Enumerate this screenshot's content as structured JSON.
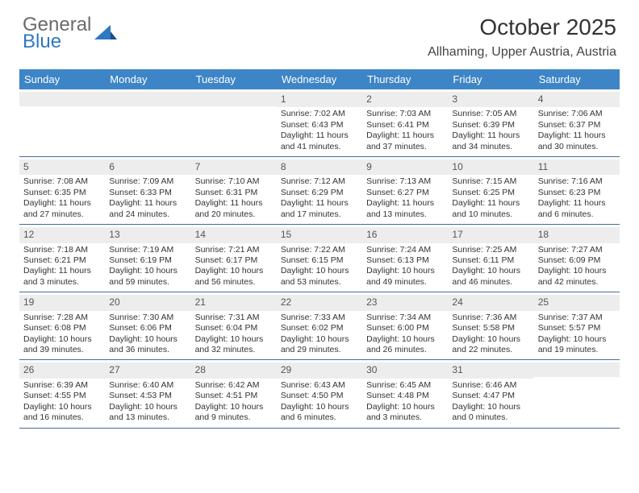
{
  "logo": {
    "line1": "General",
    "line2": "Blue"
  },
  "title": "October 2025",
  "location": "Allhaming, Upper Austria, Austria",
  "colors": {
    "header_bg": "#3d85c6",
    "row_border": "#3d6ea0",
    "daynum_bg": "#ededed",
    "text": "#333333",
    "logo_blue": "#2f78c2"
  },
  "weekdays": [
    "Sunday",
    "Monday",
    "Tuesday",
    "Wednesday",
    "Thursday",
    "Friday",
    "Saturday"
  ],
  "weeks": [
    [
      {
        "n": "",
        "lines": []
      },
      {
        "n": "",
        "lines": []
      },
      {
        "n": "",
        "lines": []
      },
      {
        "n": "1",
        "lines": [
          "Sunrise: 7:02 AM",
          "Sunset: 6:43 PM",
          "Daylight: 11 hours and 41 minutes."
        ]
      },
      {
        "n": "2",
        "lines": [
          "Sunrise: 7:03 AM",
          "Sunset: 6:41 PM",
          "Daylight: 11 hours and 37 minutes."
        ]
      },
      {
        "n": "3",
        "lines": [
          "Sunrise: 7:05 AM",
          "Sunset: 6:39 PM",
          "Daylight: 11 hours and 34 minutes."
        ]
      },
      {
        "n": "4",
        "lines": [
          "Sunrise: 7:06 AM",
          "Sunset: 6:37 PM",
          "Daylight: 11 hours and 30 minutes."
        ]
      }
    ],
    [
      {
        "n": "5",
        "lines": [
          "Sunrise: 7:08 AM",
          "Sunset: 6:35 PM",
          "Daylight: 11 hours and 27 minutes."
        ]
      },
      {
        "n": "6",
        "lines": [
          "Sunrise: 7:09 AM",
          "Sunset: 6:33 PM",
          "Daylight: 11 hours and 24 minutes."
        ]
      },
      {
        "n": "7",
        "lines": [
          "Sunrise: 7:10 AM",
          "Sunset: 6:31 PM",
          "Daylight: 11 hours and 20 minutes."
        ]
      },
      {
        "n": "8",
        "lines": [
          "Sunrise: 7:12 AM",
          "Sunset: 6:29 PM",
          "Daylight: 11 hours and 17 minutes."
        ]
      },
      {
        "n": "9",
        "lines": [
          "Sunrise: 7:13 AM",
          "Sunset: 6:27 PM",
          "Daylight: 11 hours and 13 minutes."
        ]
      },
      {
        "n": "10",
        "lines": [
          "Sunrise: 7:15 AM",
          "Sunset: 6:25 PM",
          "Daylight: 11 hours and 10 minutes."
        ]
      },
      {
        "n": "11",
        "lines": [
          "Sunrise: 7:16 AM",
          "Sunset: 6:23 PM",
          "Daylight: 11 hours and 6 minutes."
        ]
      }
    ],
    [
      {
        "n": "12",
        "lines": [
          "Sunrise: 7:18 AM",
          "Sunset: 6:21 PM",
          "Daylight: 11 hours and 3 minutes."
        ]
      },
      {
        "n": "13",
        "lines": [
          "Sunrise: 7:19 AM",
          "Sunset: 6:19 PM",
          "Daylight: 10 hours and 59 minutes."
        ]
      },
      {
        "n": "14",
        "lines": [
          "Sunrise: 7:21 AM",
          "Sunset: 6:17 PM",
          "Daylight: 10 hours and 56 minutes."
        ]
      },
      {
        "n": "15",
        "lines": [
          "Sunrise: 7:22 AM",
          "Sunset: 6:15 PM",
          "Daylight: 10 hours and 53 minutes."
        ]
      },
      {
        "n": "16",
        "lines": [
          "Sunrise: 7:24 AM",
          "Sunset: 6:13 PM",
          "Daylight: 10 hours and 49 minutes."
        ]
      },
      {
        "n": "17",
        "lines": [
          "Sunrise: 7:25 AM",
          "Sunset: 6:11 PM",
          "Daylight: 10 hours and 46 minutes."
        ]
      },
      {
        "n": "18",
        "lines": [
          "Sunrise: 7:27 AM",
          "Sunset: 6:09 PM",
          "Daylight: 10 hours and 42 minutes."
        ]
      }
    ],
    [
      {
        "n": "19",
        "lines": [
          "Sunrise: 7:28 AM",
          "Sunset: 6:08 PM",
          "Daylight: 10 hours and 39 minutes."
        ]
      },
      {
        "n": "20",
        "lines": [
          "Sunrise: 7:30 AM",
          "Sunset: 6:06 PM",
          "Daylight: 10 hours and 36 minutes."
        ]
      },
      {
        "n": "21",
        "lines": [
          "Sunrise: 7:31 AM",
          "Sunset: 6:04 PM",
          "Daylight: 10 hours and 32 minutes."
        ]
      },
      {
        "n": "22",
        "lines": [
          "Sunrise: 7:33 AM",
          "Sunset: 6:02 PM",
          "Daylight: 10 hours and 29 minutes."
        ]
      },
      {
        "n": "23",
        "lines": [
          "Sunrise: 7:34 AM",
          "Sunset: 6:00 PM",
          "Daylight: 10 hours and 26 minutes."
        ]
      },
      {
        "n": "24",
        "lines": [
          "Sunrise: 7:36 AM",
          "Sunset: 5:58 PM",
          "Daylight: 10 hours and 22 minutes."
        ]
      },
      {
        "n": "25",
        "lines": [
          "Sunrise: 7:37 AM",
          "Sunset: 5:57 PM",
          "Daylight: 10 hours and 19 minutes."
        ]
      }
    ],
    [
      {
        "n": "26",
        "lines": [
          "Sunrise: 6:39 AM",
          "Sunset: 4:55 PM",
          "Daylight: 10 hours and 16 minutes."
        ]
      },
      {
        "n": "27",
        "lines": [
          "Sunrise: 6:40 AM",
          "Sunset: 4:53 PM",
          "Daylight: 10 hours and 13 minutes."
        ]
      },
      {
        "n": "28",
        "lines": [
          "Sunrise: 6:42 AM",
          "Sunset: 4:51 PM",
          "Daylight: 10 hours and 9 minutes."
        ]
      },
      {
        "n": "29",
        "lines": [
          "Sunrise: 6:43 AM",
          "Sunset: 4:50 PM",
          "Daylight: 10 hours and 6 minutes."
        ]
      },
      {
        "n": "30",
        "lines": [
          "Sunrise: 6:45 AM",
          "Sunset: 4:48 PM",
          "Daylight: 10 hours and 3 minutes."
        ]
      },
      {
        "n": "31",
        "lines": [
          "Sunrise: 6:46 AM",
          "Sunset: 4:47 PM",
          "Daylight: 10 hours and 0 minutes."
        ]
      },
      {
        "n": "",
        "lines": []
      }
    ]
  ]
}
